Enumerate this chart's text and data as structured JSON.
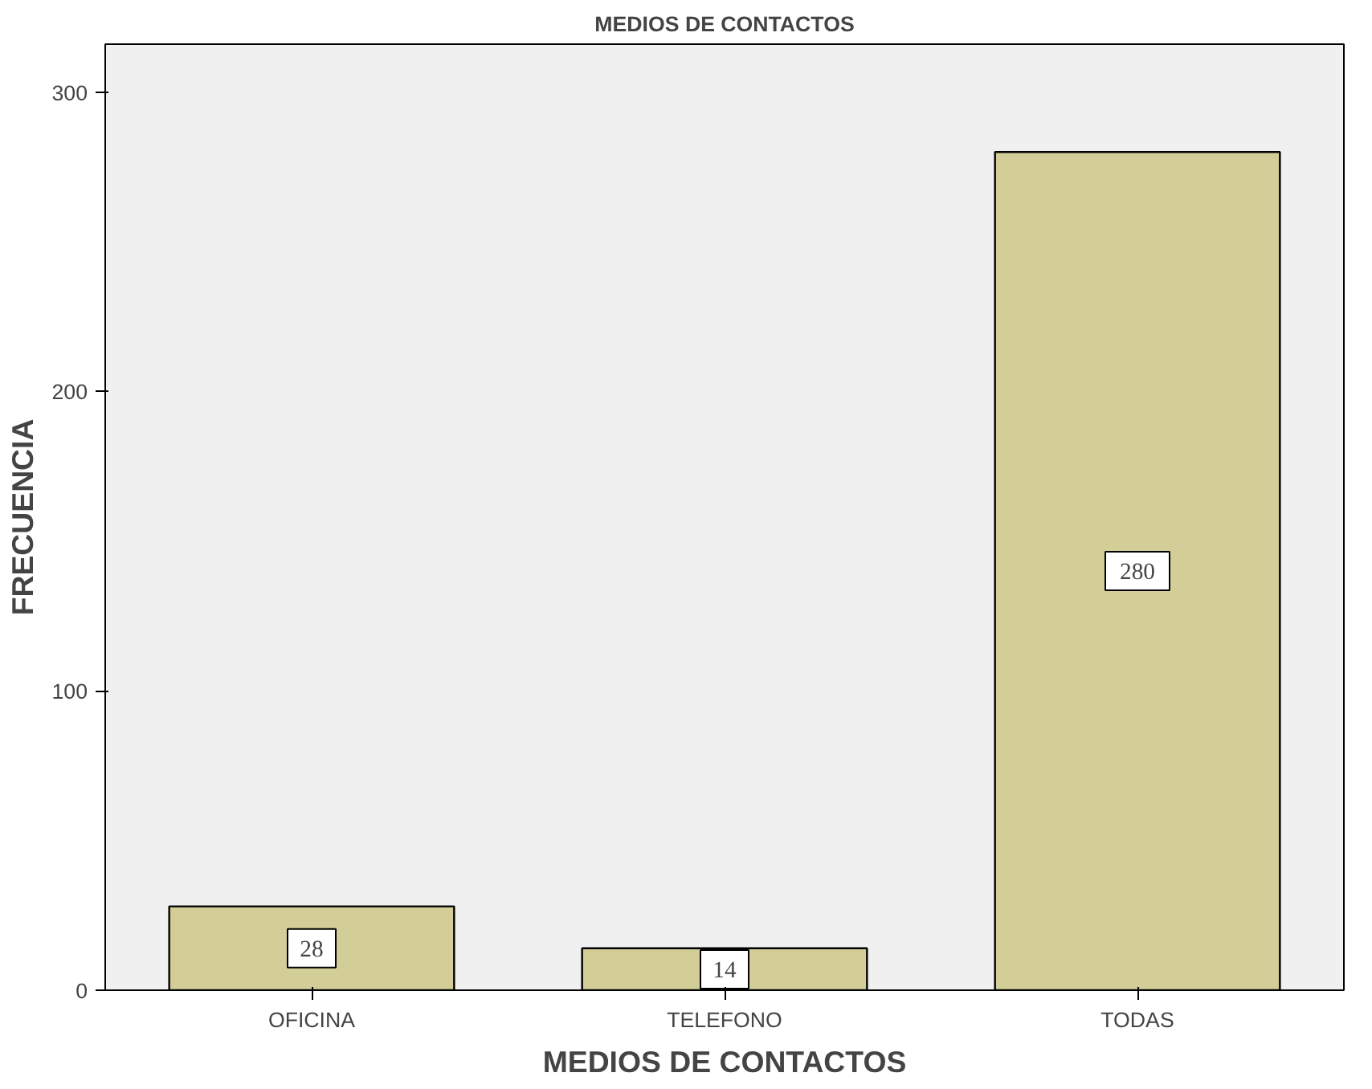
{
  "chart_data": {
    "type": "bar",
    "title": "MEDIOS DE CONTACTOS",
    "xlabel": "MEDIOS DE CONTACTOS",
    "ylabel": "FRECUENCIA",
    "categories": [
      "OFICINA",
      "TELEFONO",
      "TODAS"
    ],
    "values": [
      28,
      14,
      280
    ],
    "color": "#d3ce98",
    "ylim": [
      0,
      316
    ],
    "yticks": [
      0,
      100,
      200,
      300
    ],
    "data_labels": true,
    "grid": false
  }
}
